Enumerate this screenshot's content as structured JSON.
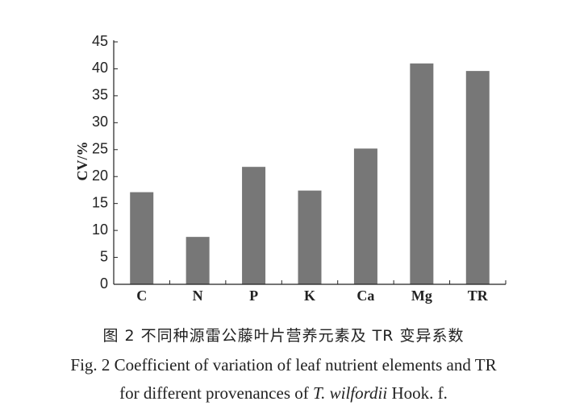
{
  "chart_data": {
    "type": "bar",
    "categories": [
      "C",
      "N",
      "P",
      "K",
      "Ca",
      "Mg",
      "TR"
    ],
    "values": [
      17.1,
      8.8,
      21.8,
      17.4,
      25.2,
      41.0,
      39.6
    ],
    "title": "",
    "xlabel": "",
    "ylabel": "CV/%",
    "ylim": [
      0,
      45
    ],
    "yticks": [
      "0",
      "5",
      "10",
      "15",
      "20",
      "25",
      "30",
      "35",
      "40",
      "45"
    ],
    "grid": false,
    "bar_color": "#777777"
  },
  "caption": {
    "chinese": "图 2   不同种源雷公藤叶片营养元素及 TR 变异系数",
    "english_line1": "Fig. 2   Coefficient of variation of leaf nutrient elements and TR",
    "english_line2_prefix": "for different provenances of ",
    "english_line2_species": "T. wilfordii",
    "english_line2_suffix": " Hook. f."
  }
}
